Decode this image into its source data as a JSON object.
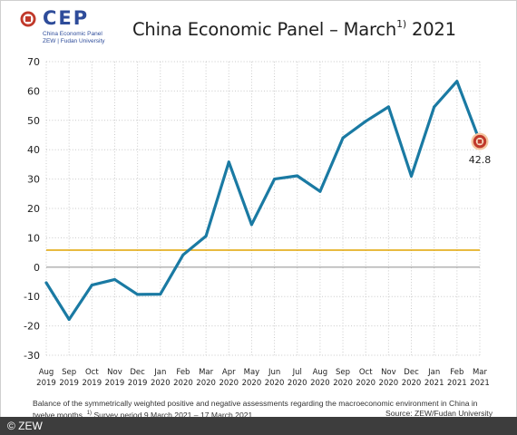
{
  "logo": {
    "name": "CEP",
    "line1": "China Economic Panel",
    "line2": "ZEW | Fudan University",
    "mark_color": "#c0392b"
  },
  "title": {
    "main": "China Economic Panel – March",
    "superscript": "1)",
    "year": " 2021"
  },
  "footnote": {
    "text_part1": "Balance of the symmetrically weighted positive and negative assessments regarding the macroeconomic environment in China in twelve months.",
    "marker": "1)",
    "text_part2": "Survey period 9 March 2021 – 17 March 2021 ."
  },
  "source": "Source: ZEW/Fudan University",
  "copyright": "© ZEW",
  "chart_data": {
    "type": "line",
    "ylim": [
      -30,
      70
    ],
    "yticks": [
      70,
      60,
      50,
      40,
      30,
      20,
      10,
      0,
      -10,
      -20,
      -30
    ],
    "categories": [
      [
        "Aug",
        "2019"
      ],
      [
        "Sep",
        "2019"
      ],
      [
        "Oct",
        "2019"
      ],
      [
        "Nov",
        "2019"
      ],
      [
        "Dec",
        "2019"
      ],
      [
        "Jan",
        "2020"
      ],
      [
        "Feb",
        "2020"
      ],
      [
        "Mar",
        "2020"
      ],
      [
        "Apr",
        "2020"
      ],
      [
        "May",
        "2020"
      ],
      [
        "Jun",
        "2020"
      ],
      [
        "Jul",
        "2020"
      ],
      [
        "Aug",
        "2020"
      ],
      [
        "Sep",
        "2020"
      ],
      [
        "Oct",
        "2020"
      ],
      [
        "Nov",
        "2020"
      ],
      [
        "Dec",
        "2020"
      ],
      [
        "Jan",
        "2021"
      ],
      [
        "Feb",
        "2021"
      ],
      [
        "Mar",
        "2021"
      ]
    ],
    "series": [
      {
        "values": [
          -5.3,
          -17.8,
          -6.1,
          -4.2,
          -9.3,
          -9.2,
          4.2,
          10.6,
          35.8,
          14.5,
          30.0,
          31.1,
          25.8,
          44.0,
          49.7,
          54.6,
          31.0,
          54.6,
          63.3,
          42.8
        ],
        "color": "#1a7aa3"
      }
    ],
    "reference_lines": [
      {
        "value": 5.8,
        "color": "#e0a400"
      },
      {
        "value": 0,
        "color": "#9a9a9a"
      }
    ],
    "last_label": "42.8",
    "grid": true,
    "grid_color": "#c9c9c9"
  }
}
